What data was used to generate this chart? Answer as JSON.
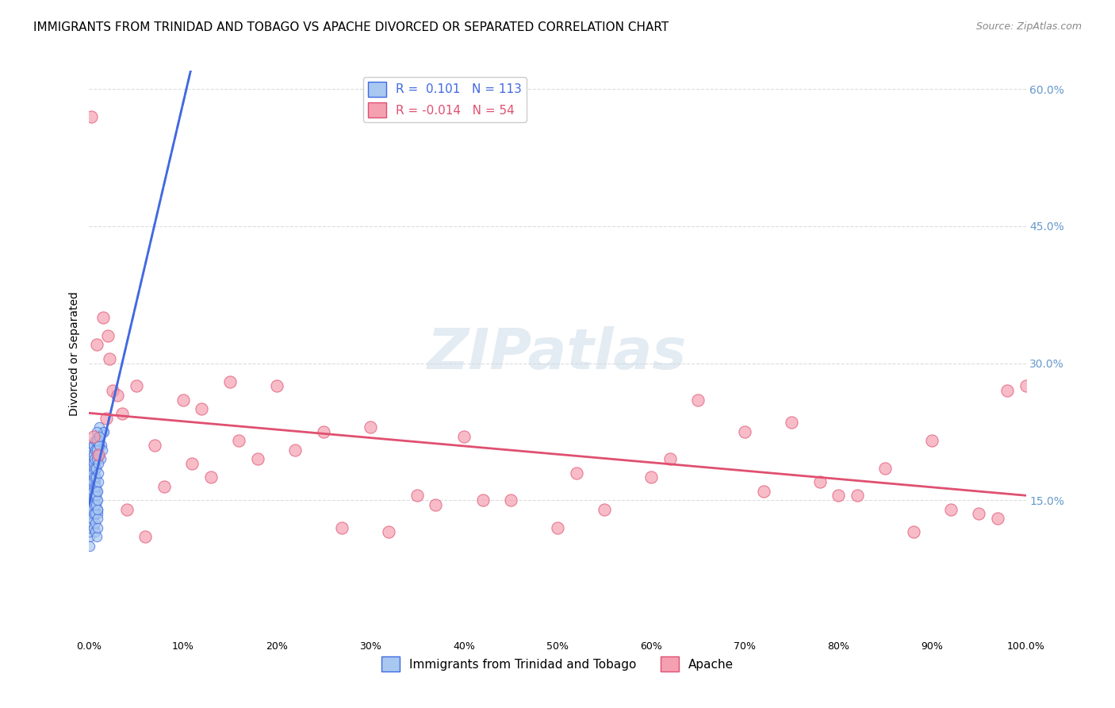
{
  "title": "IMMIGRANTS FROM TRINIDAD AND TOBAGO VS APACHE DIVORCED OR SEPARATED CORRELATION CHART",
  "source": "Source: ZipAtlas.com",
  "xlabel": "",
  "ylabel": "Divorced or Separated",
  "watermark": "ZIPatlas",
  "blue_R": 0.101,
  "blue_N": 113,
  "pink_R": -0.014,
  "pink_N": 54,
  "blue_label": "Immigrants from Trinidad and Tobago",
  "pink_label": "Apache",
  "xlim": [
    0,
    100
  ],
  "ylim": [
    0,
    62
  ],
  "xticks": [
    0,
    10,
    20,
    30,
    40,
    50,
    60,
    70,
    80,
    90,
    100
  ],
  "yticks": [
    0,
    15,
    30,
    45,
    60
  ],
  "ytick_labels": [
    "",
    "15.0%",
    "30.0%",
    "45.0%",
    "60.0%"
  ],
  "xtick_labels": [
    "0.0%",
    "10%",
    "20%",
    "30%",
    "40%",
    "50%",
    "60%",
    "70%",
    "80%",
    "90%",
    "100.0%"
  ],
  "blue_scatter_x": [
    0.1,
    0.2,
    0.3,
    0.15,
    0.25,
    0.4,
    0.5,
    0.8,
    1.0,
    0.6,
    0.3,
    0.2,
    0.1,
    0.05,
    0.7,
    0.4,
    0.2,
    0.3,
    0.1,
    0.15,
    0.25,
    0.35,
    0.45,
    0.55,
    0.65,
    0.75,
    0.85,
    0.95,
    1.2,
    1.5,
    0.08,
    0.12,
    0.18,
    0.22,
    0.28,
    0.32,
    0.38,
    0.42,
    0.48,
    0.52,
    0.58,
    0.62,
    0.68,
    0.72,
    0.78,
    0.82,
    0.88,
    0.92,
    0.98,
    1.05,
    1.1,
    1.3,
    1.4,
    1.6,
    0.05,
    0.06,
    0.07,
    0.09,
    0.11,
    0.13,
    0.14,
    0.16,
    0.17,
    0.19,
    0.21,
    0.23,
    0.24,
    0.26,
    0.27,
    0.29,
    0.31,
    0.33,
    0.34,
    0.36,
    0.37,
    0.39,
    0.41,
    0.43,
    0.44,
    0.46,
    0.47,
    0.49,
    0.51,
    0.53,
    0.54,
    0.56,
    0.57,
    0.59,
    0.61,
    0.63,
    0.64,
    0.66,
    0.67,
    0.69,
    0.71,
    0.73,
    0.74,
    0.76,
    0.77,
    0.79,
    0.81,
    0.83,
    0.84,
    0.86,
    0.87,
    0.89,
    0.91,
    0.93,
    0.94,
    0.96,
    0.97,
    0.99,
    1.02,
    1.08
  ],
  "blue_scatter_y": [
    18.5,
    20.0,
    19.0,
    17.5,
    16.5,
    21.0,
    18.0,
    19.5,
    22.0,
    17.0,
    15.5,
    14.0,
    13.5,
    12.0,
    16.0,
    20.5,
    18.5,
    17.0,
    14.5,
    16.0,
    15.0,
    17.5,
    18.0,
    16.5,
    19.0,
    18.5,
    21.0,
    20.0,
    19.5,
    22.5,
    11.0,
    12.5,
    13.0,
    14.5,
    15.5,
    16.5,
    17.0,
    18.0,
    19.0,
    20.0,
    17.5,
    18.5,
    19.5,
    20.5,
    16.0,
    15.0,
    14.0,
    13.5,
    21.5,
    22.0,
    23.0,
    21.0,
    20.5,
    22.5,
    10.0,
    11.5,
    12.0,
    13.5,
    14.0,
    15.0,
    16.0,
    17.0,
    18.0,
    19.0,
    20.0,
    14.5,
    15.5,
    16.5,
    17.5,
    18.5,
    12.5,
    13.0,
    14.0,
    15.0,
    16.0,
    17.0,
    18.0,
    19.0,
    20.0,
    21.0,
    12.0,
    13.5,
    14.5,
    15.5,
    16.5,
    17.5,
    18.5,
    19.5,
    20.5,
    21.5,
    11.5,
    12.5,
    13.5,
    14.5,
    15.5,
    16.5,
    17.5,
    18.5,
    19.5,
    20.5,
    21.5,
    22.5,
    11.0,
    12.0,
    13.0,
    14.0,
    15.0,
    16.0,
    17.0,
    18.0,
    19.0,
    20.0,
    21.0,
    22.0
  ],
  "pink_scatter_x": [
    0.2,
    0.8,
    1.5,
    2.5,
    2.0,
    2.2,
    3.0,
    5.0,
    7.0,
    10.0,
    15.0,
    12.0,
    20.0,
    18.0,
    25.0,
    30.0,
    35.0,
    40.0,
    50.0,
    60.0,
    70.0,
    75.0,
    80.0,
    85.0,
    90.0,
    95.0,
    98.0,
    100.0,
    65.0,
    55.0,
    45.0,
    0.5,
    1.0,
    1.8,
    3.5,
    4.0,
    6.0,
    8.0,
    11.0,
    13.0,
    16.0,
    22.0,
    27.0,
    32.0,
    37.0,
    42.0,
    52.0,
    62.0,
    72.0,
    82.0,
    92.0,
    97.0,
    88.0,
    78.0
  ],
  "pink_scatter_y": [
    57.0,
    32.0,
    35.0,
    27.0,
    33.0,
    30.5,
    26.5,
    27.5,
    21.0,
    26.0,
    28.0,
    25.0,
    27.5,
    19.5,
    22.5,
    23.0,
    15.5,
    22.0,
    12.0,
    17.5,
    22.5,
    23.5,
    15.5,
    18.5,
    21.5,
    13.5,
    27.0,
    27.5,
    26.0,
    14.0,
    15.0,
    22.0,
    20.0,
    24.0,
    24.5,
    14.0,
    11.0,
    16.5,
    19.0,
    17.5,
    21.5,
    20.5,
    12.0,
    11.5,
    14.5,
    15.0,
    18.0,
    19.5,
    16.0,
    15.5,
    14.0,
    13.0,
    11.5,
    17.0
  ],
  "blue_color": "#a8c8f0",
  "pink_color": "#f4a0b0",
  "blue_line_color": "#4169e1",
  "pink_line_color": "#e05070",
  "grid_color": "#dddddd",
  "right_axis_color": "#6699cc",
  "title_fontsize": 11,
  "axis_label_fontsize": 10,
  "tick_fontsize": 9
}
